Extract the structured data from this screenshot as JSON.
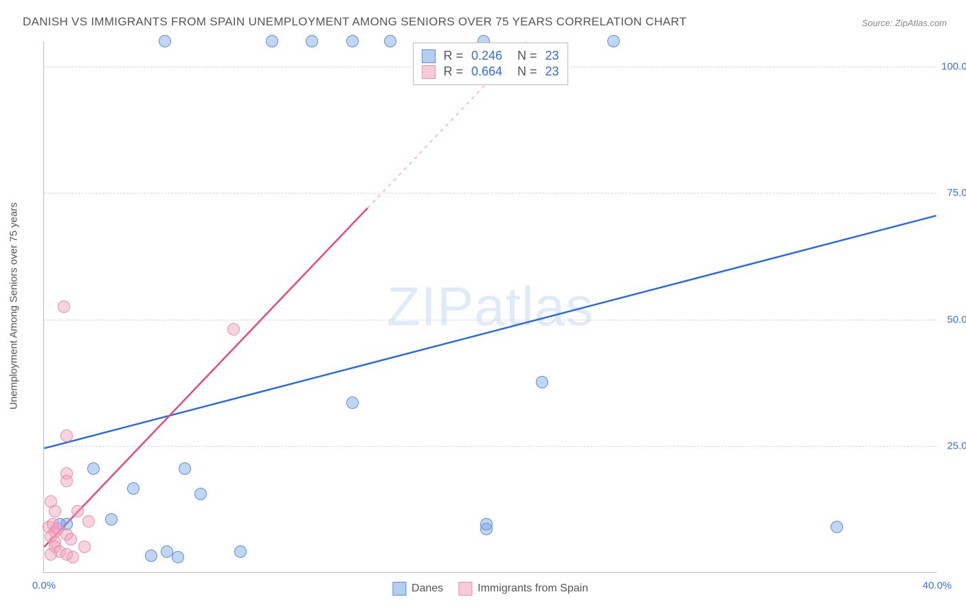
{
  "title": "DANISH VS IMMIGRANTS FROM SPAIN UNEMPLOYMENT AMONG SENIORS OVER 75 YEARS CORRELATION CHART",
  "source": "Source: ZipAtlas.com",
  "y_axis_title": "Unemployment Among Seniors over 75 years",
  "watermark_bold": "ZIP",
  "watermark_thin": "atlas",
  "chart": {
    "type": "scatter",
    "xlim": [
      0,
      40
    ],
    "ylim": [
      0,
      105
    ],
    "x_ticks": [
      {
        "v": 0,
        "l": "0.0%"
      },
      {
        "v": 40,
        "l": "40.0%"
      }
    ],
    "y_ticks": [
      {
        "v": 25,
        "l": "25.0%"
      },
      {
        "v": 50,
        "l": "50.0%"
      },
      {
        "v": 75,
        "l": "75.0%"
      },
      {
        "v": 100,
        "l": "100.0%"
      }
    ],
    "background_color": "#ffffff",
    "grid_color": "#d8d8d8",
    "series": [
      {
        "name": "Danes",
        "color": "#5a8fd8",
        "fill": "rgba(118,165,232,0.45)",
        "R": "0.246",
        "N": "23",
        "points": [
          [
            5.4,
            104.8
          ],
          [
            10.2,
            104.8
          ],
          [
            12.0,
            104.8
          ],
          [
            13.8,
            104.8
          ],
          [
            15.5,
            104.8
          ],
          [
            19.7,
            104.8
          ],
          [
            25.5,
            104.8
          ],
          [
            2.2,
            20.5
          ],
          [
            4.0,
            16.5
          ],
          [
            6.3,
            20.5
          ],
          [
            7.0,
            15.5
          ],
          [
            13.8,
            33.5
          ],
          [
            22.3,
            37.5
          ],
          [
            3.0,
            10.5
          ],
          [
            1.0,
            9.5
          ],
          [
            4.8,
            3.2
          ],
          [
            5.5,
            4.0
          ],
          [
            6.0,
            3.0
          ],
          [
            8.8,
            4.0
          ],
          [
            19.8,
            8.5
          ],
          [
            19.8,
            9.5
          ],
          [
            35.5,
            9.0
          ],
          [
            0.7,
            9.5
          ]
        ],
        "trend": {
          "x1": 0,
          "y1": 24.5,
          "x2": 40,
          "y2": 70.5,
          "solid": true
        }
      },
      {
        "name": "Immigrants from Spain",
        "color": "#e8467e",
        "fill": "rgba(242,158,187,0.45)",
        "R": "0.664",
        "N": "23",
        "points": [
          [
            0.9,
            52.5
          ],
          [
            8.5,
            48.0
          ],
          [
            1.0,
            27.0
          ],
          [
            1.0,
            19.5
          ],
          [
            1.0,
            18.0
          ],
          [
            0.3,
            14.0
          ],
          [
            0.5,
            12.0
          ],
          [
            1.5,
            12.0
          ],
          [
            2.0,
            10.0
          ],
          [
            0.2,
            9.0
          ],
          [
            0.5,
            8.0
          ],
          [
            0.3,
            7.0
          ],
          [
            0.5,
            6.0
          ],
          [
            0.5,
            5.0
          ],
          [
            0.7,
            4.0
          ],
          [
            0.3,
            3.5
          ],
          [
            1.0,
            3.5
          ],
          [
            1.3,
            3.0
          ],
          [
            0.4,
            9.5
          ],
          [
            0.6,
            8.5
          ],
          [
            1.0,
            7.5
          ],
          [
            1.2,
            6.5
          ],
          [
            1.8,
            5.0
          ]
        ],
        "trend": {
          "x1": 0,
          "y1": 5.0,
          "x2": 14.5,
          "y2": 72.0,
          "solid": true,
          "extend_to_top": true
        }
      }
    ],
    "legend_bottom": [
      {
        "swatch": "blue",
        "label": "Danes"
      },
      {
        "swatch": "pink",
        "label": "Immigrants from Spain"
      }
    ]
  }
}
